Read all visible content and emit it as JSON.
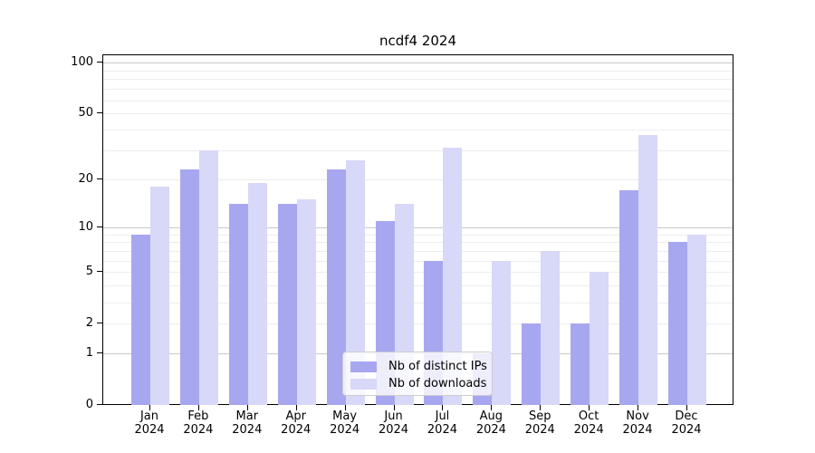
{
  "title": "ncdf4 2024",
  "legend": {
    "items": [
      {
        "label": "Nb of distinct IPs",
        "color": "#a7a7f0"
      },
      {
        "label": "Nb of downloads",
        "color": "#d8d8f8"
      }
    ]
  },
  "chart_data": {
    "type": "bar",
    "title": "ncdf4 2024",
    "categories": [
      "Jan",
      "Feb",
      "Mar",
      "Apr",
      "May",
      "Jun",
      "Jul",
      "Aug",
      "Sep",
      "Oct",
      "Nov",
      "Dec"
    ],
    "year_label": "2024",
    "series": [
      {
        "name": "Nb of distinct IPs",
        "color": "#a7a7f0",
        "values": [
          9,
          23,
          14,
          14,
          23,
          11,
          6,
          1,
          2,
          2,
          17,
          8
        ]
      },
      {
        "name": "Nb of downloads",
        "color": "#d8d8f8",
        "values": [
          18,
          30,
          19,
          15,
          26,
          14,
          31,
          6,
          7,
          5,
          37,
          9
        ]
      }
    ],
    "yscale": "log1p",
    "ylim": [
      0,
      112
    ],
    "ytick_values": [
      0,
      1,
      2,
      5,
      10,
      20,
      50,
      100
    ],
    "major_grid_values": [
      1,
      10,
      100
    ],
    "minor_grid_values": [
      2,
      3,
      4,
      5,
      6,
      7,
      8,
      9,
      20,
      30,
      40,
      50,
      60,
      70,
      80,
      90
    ],
    "grid": true,
    "legend_position": "lower center"
  },
  "colors": {
    "axis": "#000000",
    "major_grid": "#c9c9c9",
    "minor_grid": "#ededed",
    "background": "#ffffff"
  }
}
